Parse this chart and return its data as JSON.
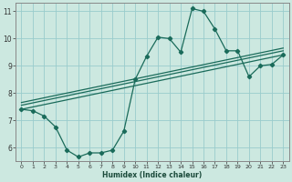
{
  "xlabel": "Humidex (Indice chaleur)",
  "bg_color": "#cce8e0",
  "grid_color": "#99cccc",
  "line_color": "#1a6b5a",
  "xlim": [
    -0.5,
    23.5
  ],
  "ylim": [
    5.5,
    11.3
  ],
  "xtick_vals": [
    0,
    1,
    2,
    3,
    4,
    5,
    6,
    7,
    8,
    9,
    10,
    11,
    12,
    13,
    14,
    15,
    16,
    17,
    18,
    19,
    20,
    21,
    22,
    23
  ],
  "ytick_vals": [
    6,
    7,
    8,
    9,
    10,
    11
  ],
  "line1_x": [
    0,
    1,
    2,
    3,
    4,
    5,
    6,
    7,
    8,
    9,
    10,
    11,
    12,
    13,
    14,
    15,
    16,
    17,
    18,
    19,
    20,
    21,
    22,
    23
  ],
  "line1_y": [
    7.4,
    7.35,
    7.15,
    6.75,
    5.9,
    5.65,
    5.8,
    5.8,
    5.9,
    6.6,
    8.5,
    9.35,
    10.05,
    10.0,
    9.5,
    11.1,
    11.0,
    10.35,
    9.55,
    9.55,
    8.6,
    9.0,
    9.05,
    9.4
  ],
  "line2_x": [
    0,
    23
  ],
  "line2_y": [
    7.4,
    9.4
  ],
  "line3_x": [
    0,
    23
  ],
  "line3_y": [
    7.55,
    9.55
  ],
  "line4_x": [
    0,
    23
  ],
  "line4_y": [
    7.65,
    9.65
  ]
}
